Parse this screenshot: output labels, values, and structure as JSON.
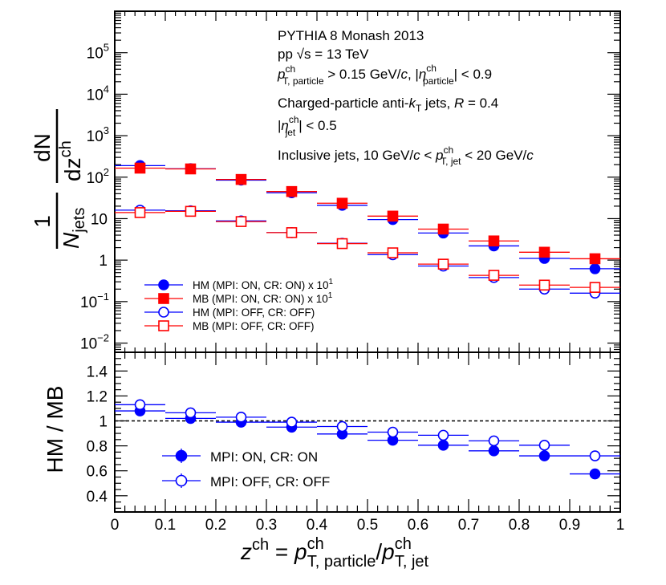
{
  "chart_data": [
    {
      "panel": "top",
      "type": "scatter",
      "yscale": "log",
      "ylim": [
        0.006,
        1000000
      ],
      "xlim": [
        0,
        1
      ],
      "ylabel": {
        "one": "1",
        "njets": "N",
        "njets_sub": "jets",
        "dn": "dN",
        "dz": "dz",
        "dz_sup": "ch"
      },
      "annotation": [
        "PYTHIA 8 Monash 2013",
        {
          "pre": "pp ",
          "sqrt": "√s",
          "post": " = 13 TeV"
        },
        {
          "p": "p",
          "p_sup": "ch",
          "p_sub": "T, particle",
          "cut": " > 0.15 GeV/",
          "c": "c",
          "comma": ", |",
          "eta": "η",
          "eta_sup": "ch",
          "eta_sub": "particle",
          "end": "| < 0.9"
        },
        {
          "pre": "Charged-particle anti-",
          "k": "k",
          "k_sub": "T",
          "mid": " jets, ",
          "R": "R",
          "post": " = 0.4"
        },
        {
          "pre": "|",
          "eta": "η",
          "eta_sup": "ch",
          "eta_sub": "jet",
          "post": "| < 0.5"
        },
        {
          "pre": "Inclusive jets, 10 GeV/",
          "c": "c",
          "mid": " < ",
          "p": "p",
          "p_sup": "ch",
          "p_sub": "T, jet",
          "post": " < 20 GeV/",
          "c2": "c"
        }
      ],
      "y_ticks": [
        {
          "v": 0.01,
          "base": "10",
          "exp": "−2"
        },
        {
          "v": 0.1,
          "base": "10",
          "exp": "−1"
        },
        {
          "v": 1,
          "base": "1",
          "exp": ""
        },
        {
          "v": 10,
          "base": "10",
          "exp": ""
        },
        {
          "v": 100,
          "base": "10",
          "exp": "2"
        },
        {
          "v": 1000,
          "base": "10",
          "exp": "3"
        },
        {
          "v": 10000,
          "base": "10",
          "exp": "4"
        },
        {
          "v": 100000,
          "base": "10",
          "exp": "5"
        }
      ],
      "x_bins": [
        0.05,
        0.15,
        0.25,
        0.35,
        0.45,
        0.55,
        0.65,
        0.75,
        0.85,
        0.95
      ],
      "series": [
        {
          "name": "HM (MPI: ON, CR: ON) x 10",
          "sup": "1",
          "marker": "circle-filled",
          "color": "#0000ff",
          "values": [
            190,
            160,
            85,
            42,
            21,
            9.5,
            4.5,
            2.2,
            1.1,
            0.62
          ]
        },
        {
          "name": "MB (MPI: ON, CR: ON) x 10",
          "sup": "1",
          "marker": "square-filled",
          "color": "#ff0000",
          "values": [
            165,
            158,
            88,
            45,
            23.5,
            11.5,
            5.6,
            2.9,
            1.55,
            1.08
          ]
        },
        {
          "name": "HM (MPI: OFF, CR: OFF)",
          "sup": "",
          "marker": "circle-open",
          "color": "#0000ff",
          "values": [
            16,
            15.5,
            8.8,
            4.6,
            2.55,
            1.35,
            0.72,
            0.38,
            0.2,
            0.16
          ]
        },
        {
          "name": "MB (MPI: OFF, CR: OFF)",
          "sup": "",
          "marker": "square-open",
          "color": "#ff0000",
          "values": [
            14,
            15,
            8.5,
            4.6,
            2.5,
            1.5,
            0.8,
            0.43,
            0.25,
            0.22
          ]
        }
      ]
    },
    {
      "panel": "bottom",
      "type": "scatter",
      "ylim": [
        0.27,
        1.55
      ],
      "xlim": [
        0,
        1
      ],
      "ylabel": "HM / MB",
      "reference_line": 1,
      "y_ticks": [
        "0.4",
        "0.6",
        "0.8",
        "1",
        "1.2",
        "1.4"
      ],
      "x_ticks": [
        "0",
        "0.1",
        "0.2",
        "0.3",
        "0.4",
        "0.5",
        "0.6",
        "0.7",
        "0.8",
        "0.9",
        "1"
      ],
      "xlabel": {
        "z": "z",
        "z_sup": "ch",
        "eq": " = ",
        "p1": "p",
        "p1_sup": "ch",
        "p1_sub": "T, particle",
        "slash": "/",
        "p2": "p",
        "p2_sup": "ch",
        "p2_sub": "T, jet"
      },
      "x_bins": [
        0.05,
        0.15,
        0.25,
        0.35,
        0.45,
        0.55,
        0.65,
        0.75,
        0.85,
        0.95
      ],
      "series": [
        {
          "name": "MPI: ON, CR: ON",
          "marker": "circle-filled",
          "color": "#0000ff",
          "values": [
            1.08,
            1.02,
            0.99,
            0.95,
            0.895,
            0.845,
            0.805,
            0.76,
            0.72,
            0.575
          ]
        },
        {
          "name": "MPI: OFF, CR: OFF",
          "marker": "circle-open",
          "color": "#0000ff",
          "values": [
            1.13,
            1.065,
            1.03,
            0.99,
            0.955,
            0.91,
            0.885,
            0.84,
            0.805,
            0.72
          ]
        }
      ]
    }
  ]
}
